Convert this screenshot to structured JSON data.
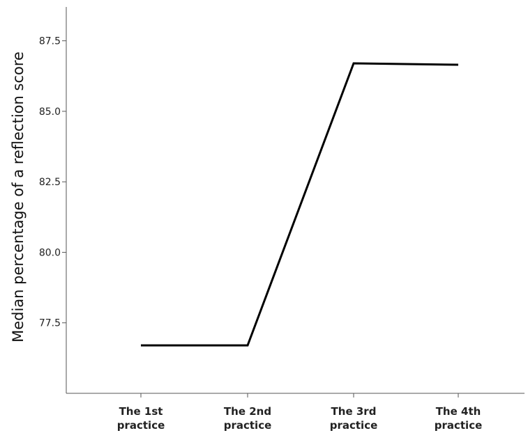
{
  "chart_data": {
    "type": "line",
    "title": "",
    "xlabel": "",
    "ylabel": "Median percentage of a reflection score",
    "categories": [
      [
        "The 1st",
        "practice"
      ],
      [
        "The 2nd",
        "practice"
      ],
      [
        "The 3rd",
        "practice"
      ],
      [
        "The 4th",
        "practice"
      ]
    ],
    "series": [
      {
        "values": [
          76.7,
          76.7,
          86.7,
          86.65
        ]
      }
    ],
    "yticks": [
      "77.5",
      "80.0",
      "82.5",
      "85.0",
      "87.5"
    ],
    "ylim": [
      75.0,
      88.7
    ],
    "grid": false,
    "line_color": "#000000"
  }
}
